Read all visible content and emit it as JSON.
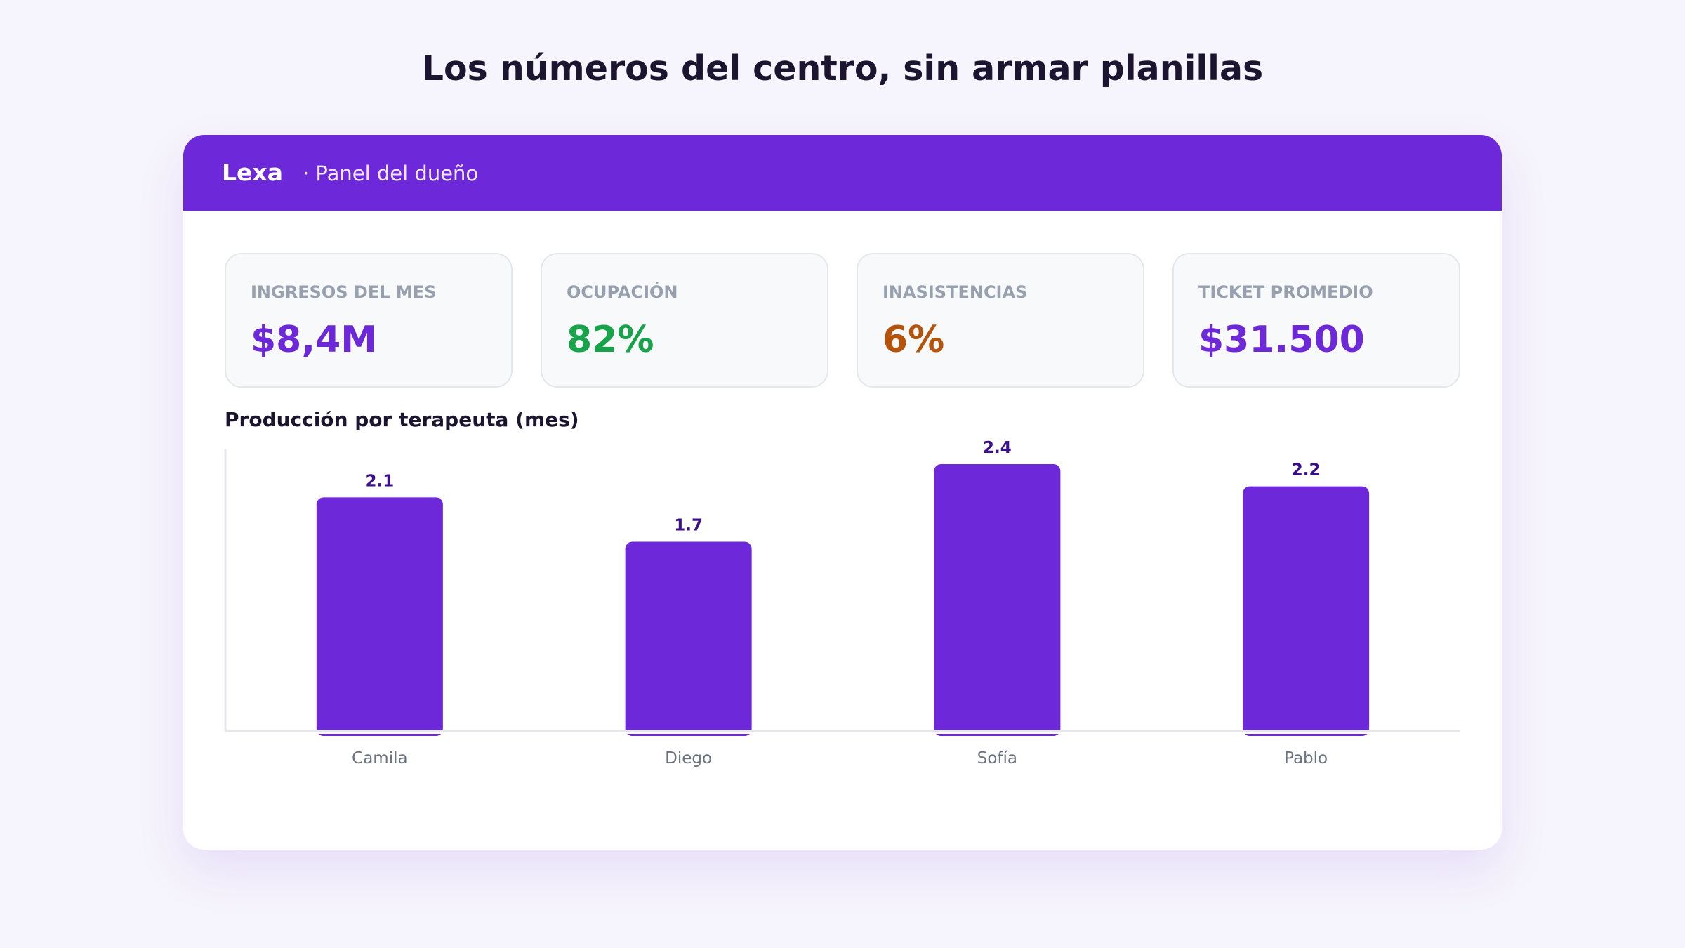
{
  "headline": "Los números del centro, sin armar planillas",
  "header": {
    "brand": "Lexa",
    "subtitle": "· Panel del dueño"
  },
  "colors": {
    "accent": "#6d28d9",
    "value_purple": "#6d28d9",
    "value_green": "#16a34a",
    "value_orange": "#b45309",
    "bar_label": "#3b0f8c"
  },
  "kpis": [
    {
      "label": "INGRESOS DEL MES",
      "value": "$8,4M",
      "color": "#6d28d9"
    },
    {
      "label": "OCUPACIÓN",
      "value": "82%",
      "color": "#16a34a"
    },
    {
      "label": "INASISTENCIAS",
      "value": "6%",
      "color": "#b45309"
    },
    {
      "label": "TICKET PROMEDIO",
      "value": "$31.500",
      "color": "#6d28d9"
    }
  ],
  "chart_data": {
    "type": "bar",
    "title": "Producción por terapeuta (mes)",
    "categories": [
      "Camila",
      "Diego",
      "Sofía",
      "Pablo"
    ],
    "values": [
      2.1,
      1.7,
      2.4,
      2.2
    ],
    "value_labels": [
      "2.1",
      "1.7",
      "2.4",
      "2.2"
    ],
    "ylim": [
      0,
      2.4
    ],
    "grid": false,
    "legend": "none"
  }
}
